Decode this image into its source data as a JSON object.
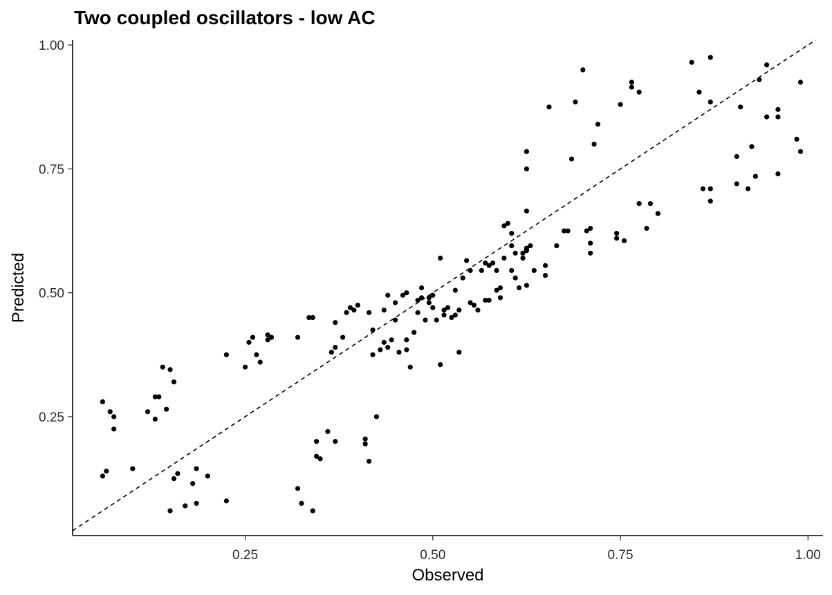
{
  "chart_data": {
    "type": "scatter",
    "title": "Two coupled oscillators - low AC",
    "xlabel": "Observed",
    "ylabel": "Predicted",
    "xlim": [
      0.02,
      1.02
    ],
    "ylim": [
      0.01,
      1.01
    ],
    "xticks": [
      0.25,
      0.5,
      0.75,
      1.0
    ],
    "xtick_labels": [
      "0.25",
      "0.50",
      "0.75",
      "1.00"
    ],
    "yticks": [
      0.25,
      0.5,
      0.75,
      1.0
    ],
    "ytick_labels": [
      "0.25",
      "0.50",
      "0.75",
      "1.00"
    ],
    "grid": false,
    "reference_line": {
      "style": "dashed",
      "slope": 1,
      "intercept": 0
    },
    "point_color": "#000000",
    "points": [
      [
        0.06,
        0.13
      ],
      [
        0.06,
        0.28
      ],
      [
        0.065,
        0.14
      ],
      [
        0.07,
        0.26
      ],
      [
        0.075,
        0.25
      ],
      [
        0.075,
        0.225
      ],
      [
        0.1,
        0.145
      ],
      [
        0.12,
        0.26
      ],
      [
        0.13,
        0.29
      ],
      [
        0.13,
        0.245
      ],
      [
        0.135,
        0.29
      ],
      [
        0.14,
        0.35
      ],
      [
        0.145,
        0.265
      ],
      [
        0.15,
        0.345
      ],
      [
        0.15,
        0.06
      ],
      [
        0.155,
        0.32
      ],
      [
        0.155,
        0.125
      ],
      [
        0.16,
        0.135
      ],
      [
        0.17,
        0.07
      ],
      [
        0.18,
        0.115
      ],
      [
        0.185,
        0.145
      ],
      [
        0.185,
        0.075
      ],
      [
        0.2,
        0.13
      ],
      [
        0.225,
        0.375
      ],
      [
        0.225,
        0.08
      ],
      [
        0.25,
        0.35
      ],
      [
        0.255,
        0.4
      ],
      [
        0.26,
        0.41
      ],
      [
        0.265,
        0.375
      ],
      [
        0.27,
        0.36
      ],
      [
        0.28,
        0.415
      ],
      [
        0.28,
        0.405
      ],
      [
        0.285,
        0.41
      ],
      [
        0.32,
        0.105
      ],
      [
        0.32,
        0.41
      ],
      [
        0.325,
        0.075
      ],
      [
        0.335,
        0.45
      ],
      [
        0.34,
        0.06
      ],
      [
        0.34,
        0.45
      ],
      [
        0.345,
        0.2
      ],
      [
        0.345,
        0.17
      ],
      [
        0.35,
        0.165
      ],
      [
        0.36,
        0.22
      ],
      [
        0.365,
        0.38
      ],
      [
        0.37,
        0.44
      ],
      [
        0.37,
        0.2
      ],
      [
        0.37,
        0.39
      ],
      [
        0.38,
        0.41
      ],
      [
        0.385,
        0.46
      ],
      [
        0.39,
        0.47
      ],
      [
        0.395,
        0.465
      ],
      [
        0.4,
        0.475
      ],
      [
        0.41,
        0.205
      ],
      [
        0.41,
        0.195
      ],
      [
        0.415,
        0.46
      ],
      [
        0.415,
        0.16
      ],
      [
        0.42,
        0.425
      ],
      [
        0.42,
        0.375
      ],
      [
        0.425,
        0.25
      ],
      [
        0.43,
        0.385
      ],
      [
        0.435,
        0.4
      ],
      [
        0.435,
        0.465
      ],
      [
        0.44,
        0.495
      ],
      [
        0.44,
        0.39
      ],
      [
        0.445,
        0.405
      ],
      [
        0.45,
        0.48
      ],
      [
        0.45,
        0.445
      ],
      [
        0.455,
        0.38
      ],
      [
        0.46,
        0.495
      ],
      [
        0.465,
        0.5
      ],
      [
        0.465,
        0.405
      ],
      [
        0.465,
        0.385
      ],
      [
        0.47,
        0.35
      ],
      [
        0.475,
        0.42
      ],
      [
        0.48,
        0.46
      ],
      [
        0.48,
        0.485
      ],
      [
        0.485,
        0.51
      ],
      [
        0.485,
        0.49
      ],
      [
        0.49,
        0.445
      ],
      [
        0.495,
        0.48
      ],
      [
        0.495,
        0.49
      ],
      [
        0.5,
        0.495
      ],
      [
        0.5,
        0.47
      ],
      [
        0.505,
        0.445
      ],
      [
        0.51,
        0.355
      ],
      [
        0.51,
        0.57
      ],
      [
        0.515,
        0.455
      ],
      [
        0.515,
        0.465
      ],
      [
        0.52,
        0.47
      ],
      [
        0.525,
        0.45
      ],
      [
        0.53,
        0.505
      ],
      [
        0.53,
        0.455
      ],
      [
        0.535,
        0.465
      ],
      [
        0.535,
        0.38
      ],
      [
        0.54,
        0.53
      ],
      [
        0.545,
        0.565
      ],
      [
        0.55,
        0.48
      ],
      [
        0.55,
        0.545
      ],
      [
        0.555,
        0.475
      ],
      [
        0.56,
        0.465
      ],
      [
        0.565,
        0.545
      ],
      [
        0.57,
        0.56
      ],
      [
        0.57,
        0.485
      ],
      [
        0.575,
        0.485
      ],
      [
        0.575,
        0.555
      ],
      [
        0.58,
        0.56
      ],
      [
        0.585,
        0.545
      ],
      [
        0.585,
        0.505
      ],
      [
        0.59,
        0.51
      ],
      [
        0.59,
        0.49
      ],
      [
        0.595,
        0.57
      ],
      [
        0.595,
        0.635
      ],
      [
        0.6,
        0.64
      ],
      [
        0.605,
        0.545
      ],
      [
        0.605,
        0.62
      ],
      [
        0.605,
        0.595
      ],
      [
        0.61,
        0.53
      ],
      [
        0.61,
        0.58
      ],
      [
        0.615,
        0.51
      ],
      [
        0.62,
        0.57
      ],
      [
        0.62,
        0.58
      ],
      [
        0.625,
        0.515
      ],
      [
        0.625,
        0.585
      ],
      [
        0.625,
        0.75
      ],
      [
        0.625,
        0.785
      ],
      [
        0.625,
        0.665
      ],
      [
        0.625,
        0.59
      ],
      [
        0.63,
        0.595
      ],
      [
        0.635,
        0.545
      ],
      [
        0.65,
        0.555
      ],
      [
        0.65,
        0.535
      ],
      [
        0.655,
        0.875
      ],
      [
        0.665,
        0.595
      ],
      [
        0.675,
        0.625
      ],
      [
        0.68,
        0.625
      ],
      [
        0.685,
        0.77
      ],
      [
        0.69,
        0.885
      ],
      [
        0.7,
        0.95
      ],
      [
        0.705,
        0.625
      ],
      [
        0.71,
        0.58
      ],
      [
        0.71,
        0.6
      ],
      [
        0.71,
        0.63
      ],
      [
        0.715,
        0.8
      ],
      [
        0.72,
        0.84
      ],
      [
        0.745,
        0.61
      ],
      [
        0.745,
        0.62
      ],
      [
        0.75,
        0.88
      ],
      [
        0.755,
        0.605
      ],
      [
        0.765,
        0.925
      ],
      [
        0.765,
        0.915
      ],
      [
        0.775,
        0.905
      ],
      [
        0.775,
        0.68
      ],
      [
        0.785,
        0.63
      ],
      [
        0.79,
        0.68
      ],
      [
        0.8,
        0.66
      ],
      [
        0.845,
        0.965
      ],
      [
        0.855,
        0.905
      ],
      [
        0.86,
        0.71
      ],
      [
        0.87,
        0.885
      ],
      [
        0.87,
        0.975
      ],
      [
        0.87,
        0.685
      ],
      [
        0.87,
        0.71
      ],
      [
        0.905,
        0.775
      ],
      [
        0.905,
        0.72
      ],
      [
        0.91,
        0.875
      ],
      [
        0.92,
        0.71
      ],
      [
        0.925,
        0.795
      ],
      [
        0.93,
        0.735
      ],
      [
        0.935,
        0.93
      ],
      [
        0.945,
        0.96
      ],
      [
        0.945,
        0.855
      ],
      [
        0.96,
        0.855
      ],
      [
        0.96,
        0.74
      ],
      [
        0.96,
        0.87
      ],
      [
        0.985,
        0.81
      ],
      [
        0.99,
        0.785
      ],
      [
        0.99,
        0.925
      ]
    ]
  }
}
